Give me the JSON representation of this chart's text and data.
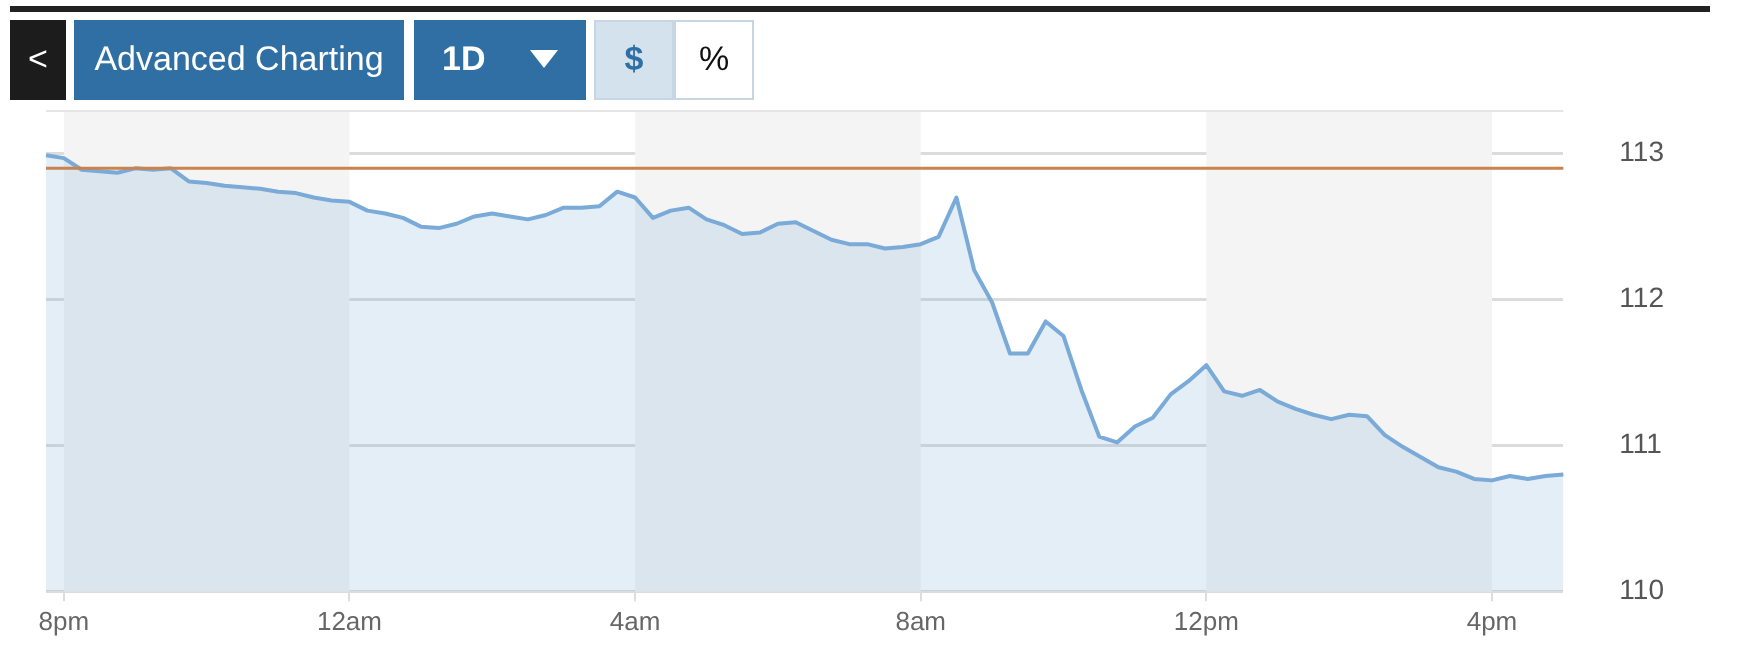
{
  "chart_data": {
    "type": "area",
    "annotations": [
      "<",
      "Advanced Charting",
      "1D",
      "$",
      "%"
    ],
    "categories": [
      null,
      "8pm",
      null,
      null,
      null,
      null,
      null,
      null,
      null,
      null,
      null,
      null,
      null,
      null,
      null,
      null,
      null,
      "12am",
      null,
      null,
      null,
      null,
      null,
      null,
      null,
      null,
      null,
      null,
      null,
      null,
      null,
      null,
      null,
      "4am",
      null,
      null,
      null,
      null,
      null,
      null,
      null,
      null,
      null,
      null,
      null,
      null,
      null,
      null,
      null,
      "8am",
      null,
      null,
      null,
      null,
      null,
      null,
      null,
      null,
      null,
      null,
      null,
      null,
      null,
      null,
      null,
      "12pm",
      null,
      null,
      null,
      null,
      null,
      null,
      null,
      null,
      null,
      null,
      null,
      null,
      null,
      null,
      null,
      "4pm",
      null,
      null,
      null,
      null
    ],
    "series": [
      {
        "color": "#7aaad8",
        "values": [
          112.99,
          112.97,
          112.89,
          112.88,
          112.87,
          112.9,
          112.89,
          112.9,
          112.81,
          112.8,
          112.78,
          112.77,
          112.76,
          112.74,
          112.73,
          112.7,
          112.68,
          112.67,
          112.61,
          112.59,
          112.56,
          112.5,
          112.49,
          112.52,
          112.57,
          112.59,
          112.57,
          112.55,
          112.58,
          112.63,
          112.63,
          112.64,
          112.74,
          112.7,
          112.56,
          112.61,
          112.63,
          112.55,
          112.51,
          112.45,
          112.46,
          112.52,
          112.53,
          112.47,
          112.41,
          112.38,
          112.38,
          112.35,
          112.36,
          112.38,
          112.43,
          112.7,
          112.2,
          111.98,
          111.63,
          111.63,
          111.85,
          111.75,
          111.38,
          111.06,
          111.02,
          111.13,
          111.19,
          111.35,
          111.44,
          111.55,
          111.37,
          111.34,
          111.38,
          111.3,
          111.25,
          111.21,
          111.18,
          111.21,
          111.2,
          111.07,
          110.99,
          110.92,
          110.85,
          110.82,
          110.77,
          110.76,
          110.79,
          110.77,
          110.79,
          110.8
        ]
      }
    ],
    "ylim": [
      110,
      113.3
    ],
    "yticks": [
      110,
      111,
      112,
      113
    ],
    "grid": "y",
    "ref_lines": [
      {
        "axis": "y",
        "value": 112.9,
        "color": "#c8834f"
      }
    ],
    "bands": [
      {
        "axis": "x",
        "from": "8pm",
        "to": "12am",
        "color": "#f4f4f4"
      },
      {
        "axis": "x",
        "from": "4am",
        "to": "8am",
        "color": "#f4f4f4"
      },
      {
        "axis": "x",
        "from": "12pm",
        "to": "4pm",
        "color": "#f4f4f4"
      }
    ]
  }
}
